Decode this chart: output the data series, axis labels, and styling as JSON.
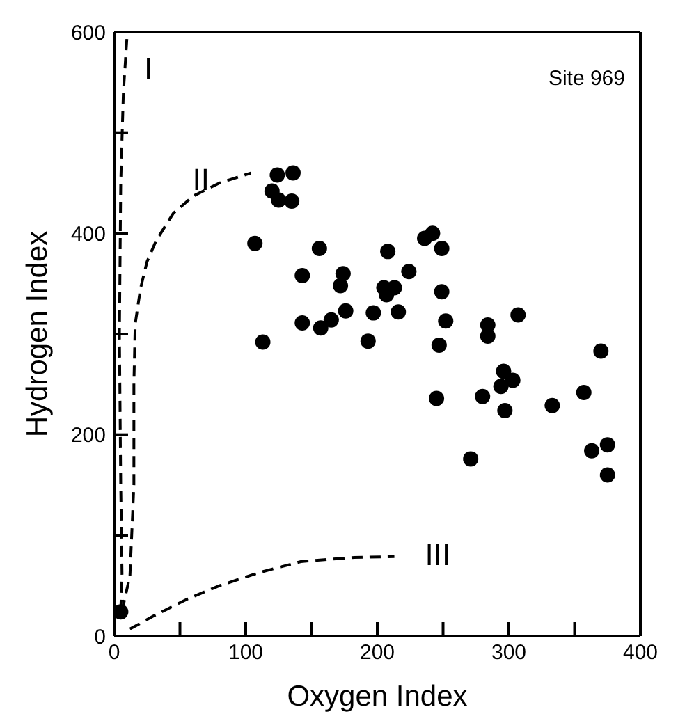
{
  "chart_data": {
    "type": "scatter",
    "xlabel": "Oxygen Index",
    "ylabel": "Hydrogen Index",
    "annotations": [
      "Site 969"
    ],
    "xlim": [
      0,
      400
    ],
    "ylim": [
      0,
      600
    ],
    "xticks": [
      0,
      {
        "value": 50,
        "label": null
      },
      100,
      {
        "value": 150,
        "label": null
      },
      200,
      {
        "value": 250,
        "label": null
      },
      300,
      {
        "value": 350,
        "label": null
      },
      400
    ],
    "yticks": [
      0,
      {
        "value": 100,
        "label": null
      },
      200,
      {
        "value": 300,
        "label": null
      },
      400,
      {
        "value": 500,
        "label": null
      },
      600
    ],
    "marker": "circle",
    "series": [
      {
        "color": "#000000",
        "x": [
          5,
          107,
          113,
          120,
          124,
          125,
          135,
          136,
          143,
          143,
          156,
          157,
          165,
          172,
          174,
          176,
          193,
          197,
          205,
          207,
          208,
          213,
          216,
          224,
          236,
          242,
          245,
          247,
          249,
          249,
          252,
          271,
          280,
          284,
          284,
          294,
          296,
          297,
          303,
          307,
          333,
          357,
          363,
          370,
          375,
          375
        ],
        "values": [
          24,
          390,
          292,
          442,
          458,
          433,
          432,
          460,
          358,
          311,
          385,
          306,
          314,
          348,
          360,
          323,
          293,
          321,
          346,
          339,
          382,
          346,
          322,
          362,
          395,
          400,
          236,
          289,
          342,
          385,
          313,
          176,
          238,
          309,
          298,
          248,
          263,
          224,
          254,
          319,
          229,
          242,
          184,
          283,
          190,
          160
        ]
      },
      {
        "type": "line",
        "name": "I",
        "color": "#000000",
        "line_style": "dashed",
        "marker": "none",
        "x": [
          5,
          6,
          5,
          4,
          5,
          7,
          10
        ],
        "values": [
          25,
          60,
          150,
          300,
          450,
          540,
          600
        ]
      },
      {
        "type": "line",
        "name": "II",
        "color": "#000000",
        "line_style": "dashed",
        "marker": "none",
        "x": [
          6,
          12,
          15,
          15,
          16,
          20,
          25,
          32,
          45,
          60,
          80,
          104
        ],
        "values": [
          25,
          60,
          150,
          250,
          310,
          345,
          372,
          393,
          420,
          437,
          450,
          460
        ]
      },
      {
        "type": "line",
        "name": "III",
        "color": "#000000",
        "line_style": "dashed",
        "marker": "none",
        "x": [
          12,
          30,
          56,
          80,
          110,
          142,
          180,
          213
        ],
        "values": [
          7,
          20,
          37,
          50,
          63,
          74,
          78,
          79
        ]
      }
    ]
  }
}
